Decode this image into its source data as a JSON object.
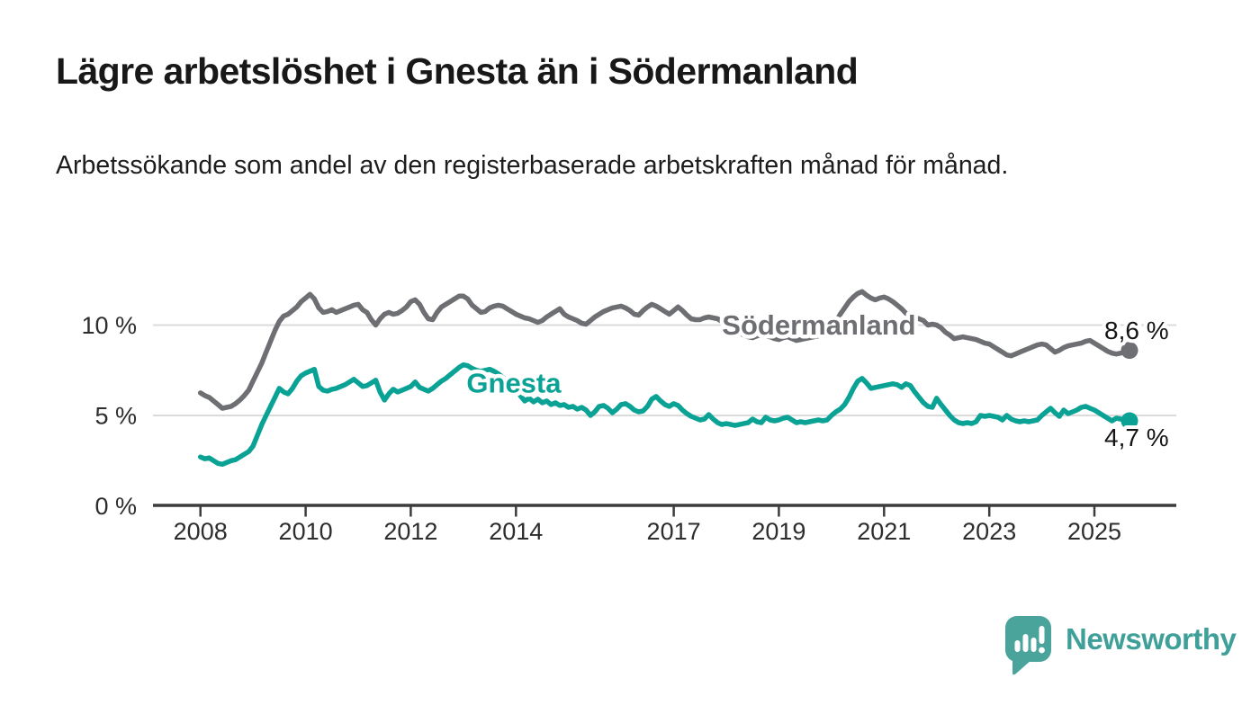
{
  "header": {
    "title": "Lägre arbetslöshet i Gnesta än i Södermanland",
    "subtitle": "Arbetssökande som andel av den registerbaserade arbetskraften månad för månad."
  },
  "branding": {
    "wordmark": "Newsworthy",
    "icon": "speech-bubble-bar-chart-icon",
    "color": "#45a49c"
  },
  "chart_data": {
    "type": "line",
    "title": "Lägre arbetslöshet i Gnesta än i Södermanland",
    "subtitle": "Arbetssökande som andel av den registerbaserade arbetskraften månad för månad.",
    "unit": "%",
    "grid": true,
    "legend_position": "inline-labels",
    "x_axis": {
      "ticks": [
        2008,
        2010,
        2012,
        2014,
        2017,
        2019,
        2021,
        2023,
        2025
      ],
      "range": [
        2007.1,
        2026.6
      ]
    },
    "y_axis": {
      "ticks": [
        {
          "value": 0,
          "label": "0 %"
        },
        {
          "value": 5,
          "label": "5 %"
        },
        {
          "value": 10,
          "label": "10 %"
        }
      ],
      "range": [
        0,
        12.6
      ]
    },
    "start_year": 2008,
    "step_months": 1,
    "series": [
      {
        "name": "Södermanland",
        "color": "#6e6f73",
        "end_value": 8.6,
        "end_label": "8,6 %",
        "end_label_position": "above",
        "label_anchor": {
          "t": 2017.92,
          "v": 9.48
        },
        "values": [
          6.25,
          6.1,
          6.0,
          5.8,
          5.6,
          5.4,
          5.45,
          5.5,
          5.65,
          5.85,
          6.1,
          6.4,
          6.9,
          7.4,
          7.9,
          8.5,
          9.1,
          9.7,
          10.2,
          10.5,
          10.6,
          10.8,
          11.0,
          11.3,
          11.5,
          11.7,
          11.45,
          10.95,
          10.7,
          10.75,
          10.85,
          10.7,
          10.8,
          10.9,
          11.0,
          11.1,
          11.15,
          10.85,
          10.7,
          10.3,
          10.0,
          10.35,
          10.6,
          10.7,
          10.6,
          10.65,
          10.8,
          11.0,
          11.3,
          11.4,
          11.15,
          10.7,
          10.35,
          10.3,
          10.7,
          11.0,
          11.15,
          11.3,
          11.45,
          11.6,
          11.6,
          11.45,
          11.1,
          10.9,
          10.7,
          10.75,
          10.95,
          11.05,
          11.1,
          11.05,
          10.9,
          10.75,
          10.6,
          10.5,
          10.4,
          10.35,
          10.25,
          10.15,
          10.25,
          10.45,
          10.6,
          10.75,
          10.9,
          10.6,
          10.45,
          10.35,
          10.25,
          10.1,
          10.05,
          10.25,
          10.45,
          10.6,
          10.75,
          10.85,
          10.95,
          11.0,
          11.05,
          10.95,
          10.8,
          10.6,
          10.55,
          10.8,
          11.0,
          11.15,
          11.05,
          10.9,
          10.75,
          10.6,
          10.8,
          11.0,
          10.8,
          10.55,
          10.35,
          10.3,
          10.3,
          10.4,
          10.45,
          10.4,
          10.35,
          10.2,
          10.05,
          9.9,
          9.7,
          9.55,
          9.45,
          9.35,
          9.3,
          9.4,
          9.45,
          9.4,
          9.35,
          9.25,
          9.2,
          9.3,
          9.35,
          9.25,
          9.15,
          9.2,
          9.25,
          9.3,
          9.35,
          9.4,
          9.5,
          9.65,
          9.9,
          10.2,
          10.6,
          10.95,
          11.3,
          11.55,
          11.75,
          11.85,
          11.65,
          11.5,
          11.4,
          11.5,
          11.55,
          11.45,
          11.3,
          11.1,
          10.9,
          10.65,
          10.5,
          10.4,
          10.35,
          10.25,
          10.0,
          10.05,
          10.0,
          9.85,
          9.6,
          9.45,
          9.25,
          9.3,
          9.35,
          9.3,
          9.25,
          9.2,
          9.1,
          9.0,
          8.95,
          8.8,
          8.65,
          8.5,
          8.35,
          8.3,
          8.4,
          8.5,
          8.6,
          8.7,
          8.8,
          8.9,
          8.95,
          8.9,
          8.7,
          8.5,
          8.6,
          8.75,
          8.85,
          8.9,
          8.95,
          9.0,
          9.1,
          9.15,
          9.0,
          8.85,
          8.7,
          8.55,
          8.45,
          8.4,
          8.45,
          8.5,
          8.6
        ]
      },
      {
        "name": "Gnesta",
        "color": "#0ba296",
        "end_value": 4.7,
        "end_label": "4,7 %",
        "end_label_position": "below",
        "label_anchor": {
          "t": 2013.06,
          "v": 6.28
        },
        "values": [
          2.7,
          2.6,
          2.65,
          2.5,
          2.35,
          2.3,
          2.4,
          2.5,
          2.55,
          2.7,
          2.85,
          3.0,
          3.3,
          3.9,
          4.5,
          5.0,
          5.5,
          6.0,
          6.5,
          6.3,
          6.2,
          6.5,
          6.9,
          7.2,
          7.35,
          7.45,
          7.55,
          6.6,
          6.4,
          6.35,
          6.45,
          6.5,
          6.6,
          6.7,
          6.85,
          7.0,
          6.8,
          6.6,
          6.65,
          6.8,
          6.95,
          6.3,
          5.85,
          6.2,
          6.45,
          6.3,
          6.4,
          6.5,
          6.6,
          6.85,
          6.55,
          6.45,
          6.35,
          6.5,
          6.7,
          6.9,
          7.05,
          7.25,
          7.45,
          7.65,
          7.8,
          7.75,
          7.6,
          7.5,
          7.45,
          7.5,
          7.55,
          7.45,
          7.3,
          7.1,
          6.9,
          6.7,
          6.4,
          6.1,
          5.8,
          5.95,
          5.75,
          5.9,
          5.7,
          5.8,
          5.6,
          5.7,
          5.55,
          5.6,
          5.45,
          5.5,
          5.35,
          5.45,
          5.3,
          5.0,
          5.2,
          5.5,
          5.55,
          5.4,
          5.15,
          5.35,
          5.6,
          5.65,
          5.5,
          5.3,
          5.2,
          5.25,
          5.5,
          5.9,
          6.05,
          5.8,
          5.6,
          5.5,
          5.65,
          5.55,
          5.3,
          5.1,
          4.95,
          4.85,
          4.75,
          4.8,
          5.05,
          4.8,
          4.6,
          4.5,
          4.55,
          4.5,
          4.45,
          4.5,
          4.55,
          4.6,
          4.8,
          4.65,
          4.6,
          4.9,
          4.75,
          4.7,
          4.75,
          4.85,
          4.9,
          4.75,
          4.6,
          4.65,
          4.6,
          4.65,
          4.7,
          4.75,
          4.7,
          4.75,
          5.0,
          5.2,
          5.35,
          5.6,
          6.0,
          6.5,
          6.9,
          7.05,
          6.8,
          6.5,
          6.55,
          6.6,
          6.65,
          6.7,
          6.75,
          6.7,
          6.55,
          6.75,
          6.65,
          6.3,
          6.0,
          5.7,
          5.5,
          5.45,
          5.95,
          5.6,
          5.3,
          5.0,
          4.75,
          4.6,
          4.55,
          4.6,
          4.55,
          4.65,
          5.0,
          4.95,
          5.0,
          4.95,
          4.9,
          4.75,
          5.0,
          4.8,
          4.7,
          4.65,
          4.7,
          4.65,
          4.7,
          4.75,
          5.0,
          5.2,
          5.4,
          5.15,
          4.95,
          5.3,
          5.1,
          5.2,
          5.3,
          5.45,
          5.5,
          5.4,
          5.3,
          5.15,
          5.0,
          4.85,
          4.7,
          4.85,
          4.8,
          4.75,
          4.7
        ]
      }
    ]
  }
}
